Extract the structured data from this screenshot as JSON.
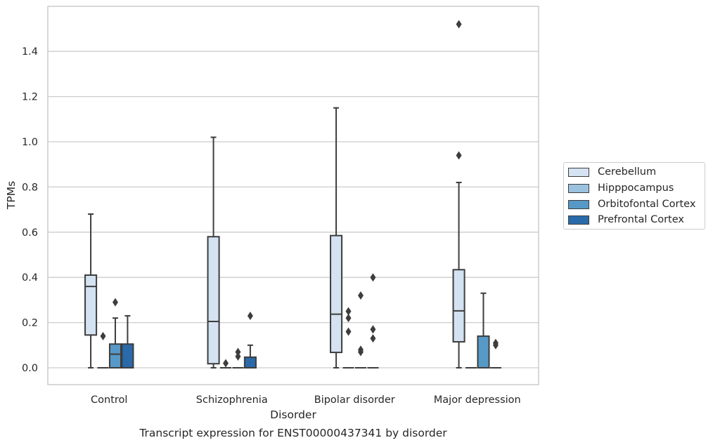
{
  "chart_data": {
    "type": "box",
    "title": "Transcript expression for ENST00000437341 by disorder",
    "xlabel": "Disorder",
    "ylabel": "TPMs",
    "ylim": [
      -0.075,
      1.6
    ],
    "yticks": [
      0.0,
      0.2,
      0.4,
      0.6,
      0.8,
      1.0,
      1.2,
      1.4
    ],
    "ytick_labels": [
      "0.0",
      "0.2",
      "0.4",
      "0.6",
      "0.8",
      "1.0",
      "1.2",
      "1.4"
    ],
    "grid": true,
    "legend_position": "right",
    "categories": [
      "Control",
      "Schizophrenia",
      "Bipolar disorder",
      "Major depression"
    ],
    "series": [
      {
        "name": "Cerebellum",
        "color": "#d4e2f1",
        "boxes": [
          {
            "whislo": 0.0,
            "q1": 0.145,
            "med": 0.36,
            "q3": 0.41,
            "whishi": 0.68,
            "fliers": []
          },
          {
            "whislo": 0.0,
            "q1": 0.018,
            "med": 0.205,
            "q3": 0.58,
            "whishi": 1.02,
            "fliers": []
          },
          {
            "whislo": 0.0,
            "q1": 0.068,
            "med": 0.237,
            "q3": 0.585,
            "whishi": 1.15,
            "fliers": []
          },
          {
            "whislo": 0.0,
            "q1": 0.115,
            "med": 0.252,
            "q3": 0.434,
            "whishi": 0.82,
            "fliers": [
              0.94,
              1.52
            ]
          }
        ]
      },
      {
        "name": "Hipppocampus",
        "color": "#9ac2de",
        "boxes": [
          {
            "whislo": 0.0,
            "q1": 0.0,
            "med": 0.0,
            "q3": 0.0,
            "whishi": 0.0,
            "fliers": [
              0.14
            ]
          },
          {
            "whislo": 0.0,
            "q1": 0.0,
            "med": 0.0,
            "q3": 0.0,
            "whishi": 0.0,
            "fliers": [
              0.02
            ]
          },
          {
            "whislo": 0.0,
            "q1": 0.0,
            "med": 0.0,
            "q3": 0.0,
            "whishi": 0.0,
            "fliers": [
              0.16,
              0.22,
              0.25
            ]
          },
          {
            "whislo": 0.0,
            "q1": 0.0,
            "med": 0.0,
            "q3": 0.0,
            "whishi": 0.0,
            "fliers": []
          }
        ]
      },
      {
        "name": "Orbitofontal Cortex",
        "color": "#5799c6",
        "boxes": [
          {
            "whislo": 0.0,
            "q1": 0.0,
            "med": 0.06,
            "q3": 0.105,
            "whishi": 0.22,
            "fliers": [
              0.29
            ]
          },
          {
            "whislo": 0.0,
            "q1": 0.0,
            "med": 0.0,
            "q3": 0.0,
            "whishi": 0.0,
            "fliers": [
              0.05,
              0.07
            ]
          },
          {
            "whislo": 0.0,
            "q1": 0.0,
            "med": 0.0,
            "q3": 0.0,
            "whishi": 0.0,
            "fliers": [
              0.07,
              0.08,
              0.32
            ]
          },
          {
            "whislo": 0.0,
            "q1": 0.0,
            "med": 0.0,
            "q3": 0.14,
            "whishi": 0.33,
            "fliers": []
          }
        ]
      },
      {
        "name": "Prefrontal Cortex",
        "color": "#2a6aaa",
        "boxes": [
          {
            "whislo": 0.0,
            "q1": 0.0,
            "med": 0.0,
            "q3": 0.105,
            "whishi": 0.23,
            "fliers": []
          },
          {
            "whislo": 0.0,
            "q1": 0.0,
            "med": 0.0,
            "q3": 0.047,
            "whishi": 0.1,
            "fliers": [
              0.23
            ]
          },
          {
            "whislo": 0.0,
            "q1": 0.0,
            "med": 0.0,
            "q3": 0.0,
            "whishi": 0.0,
            "fliers": [
              0.13,
              0.17,
              0.4
            ]
          },
          {
            "whislo": 0.0,
            "q1": 0.0,
            "med": 0.0,
            "q3": 0.0,
            "whishi": 0.0,
            "fliers": [
              0.1,
              0.11
            ]
          }
        ]
      }
    ]
  }
}
